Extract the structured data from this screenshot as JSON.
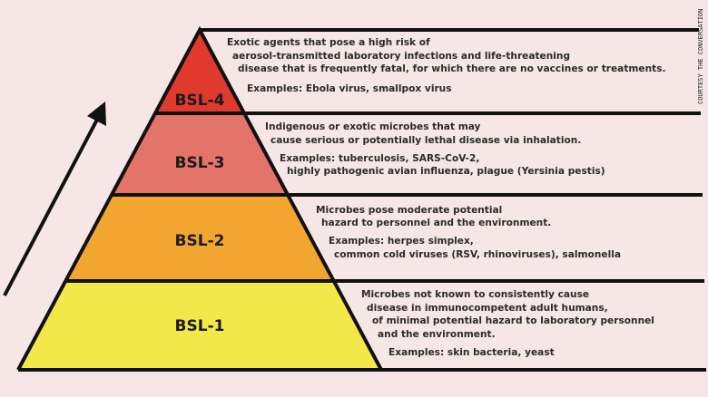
{
  "levels": [
    {
      "label": "BSL-4",
      "color": "#e03a2e",
      "description": [
        "Exotic agents that pose a high risk of",
        "aerosol-transmitted laboratory infections and life-threatening",
        "disease that is frequently fatal, for which there are no vaccines  or treatments."
      ],
      "examples": [
        "Examples: Ebola virus, smallpox virus"
      ]
    },
    {
      "label": "BSL-3",
      "color": "#e4736a",
      "description": [
        "Indigenous or exotic microbes that may",
        "cause serious or potentially lethal disease via inhalation."
      ],
      "examples": [
        "Examples: tuberculosis, SARS-CoV-2,",
        "highly pathogenic avian influenza, plague (Yersinia pestis)"
      ]
    },
    {
      "label": "BSL-2",
      "color": "#f2a630",
      "description": [
        "Microbes pose moderate potential",
        "hazard to personnel and the environment."
      ],
      "examples": [
        "Examples: herpes simplex,",
        "common cold viruses (RSV, rhinoviruses), salmonella"
      ]
    },
    {
      "label": "BSL-1",
      "color": "#f3e84a",
      "description": [
        "Microbes not known to consistently cause",
        "disease in immunocompetent adult humans,",
        "of minimal potential hazard to laboratory personnel",
        "and the environment."
      ],
      "examples": [
        "Examples: skin bacteria, yeast"
      ]
    }
  ],
  "credit": "COURTESY THE CONVERSATION",
  "arrow_icon": "up-right-arrow"
}
